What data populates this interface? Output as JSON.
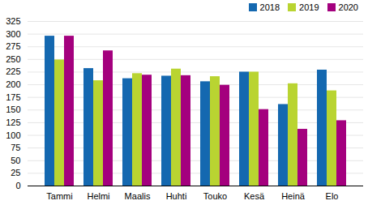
{
  "chart_data": {
    "type": "bar",
    "categories": [
      "Tammi",
      "Helmi",
      "Maalis",
      "Huhti",
      "Touko",
      "Kesä",
      "Heinä",
      "Elo"
    ],
    "series": [
      {
        "name": "2018",
        "color": "#1468b0",
        "values": [
          296,
          232,
          212,
          217,
          206,
          225,
          161,
          229
        ]
      },
      {
        "name": "2019",
        "color": "#b9d431",
        "values": [
          249,
          208,
          222,
          231,
          216,
          225,
          202,
          188
        ]
      },
      {
        "name": "2020",
        "color": "#a4007e",
        "values": [
          296,
          267,
          219,
          218,
          199,
          151,
          112,
          129
        ]
      }
    ],
    "ylim": [
      0,
      325
    ],
    "yticks": [
      0,
      25,
      50,
      75,
      100,
      125,
      150,
      175,
      200,
      225,
      250,
      275,
      300,
      325
    ],
    "grid": true,
    "legend": "top-right"
  }
}
